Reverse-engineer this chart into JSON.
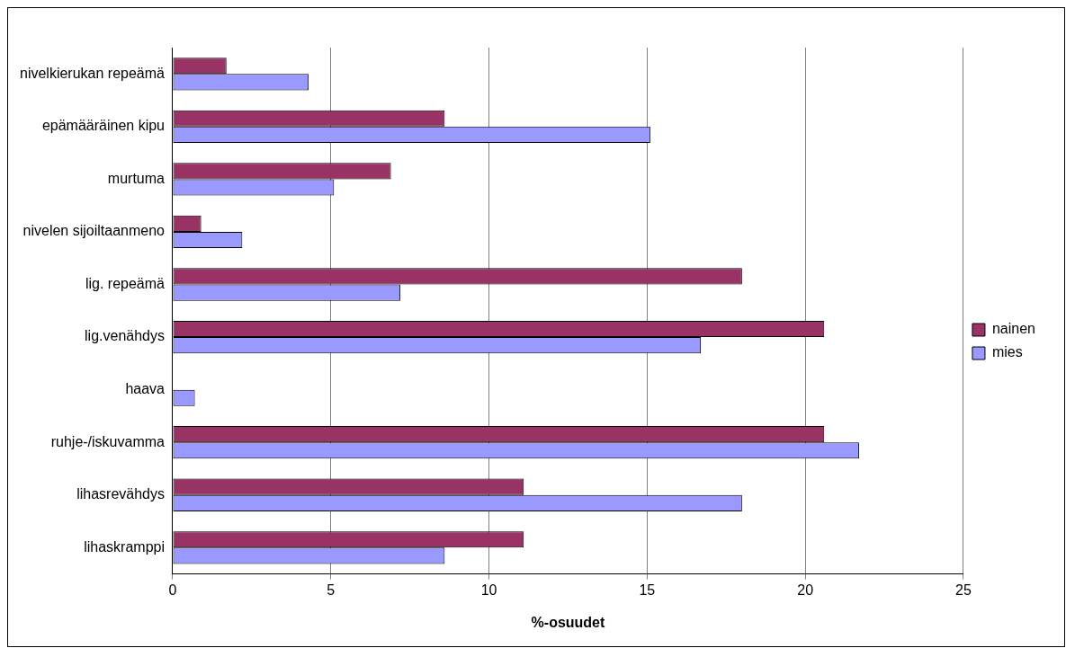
{
  "chart_data": {
    "type": "bar",
    "orientation": "horizontal",
    "xlabel": "%-osuudet",
    "categories": [
      "nivelkierukan repeämä",
      "epämääräinen kipu",
      "murtuma",
      "nivelen sijoiltaanmeno",
      "lig. repeämä",
      "lig.venähdys",
      "haava",
      "ruhje-/iskuvamma",
      "lihasrevähdys",
      "lihaskramppi"
    ],
    "series": [
      {
        "name": "nainen",
        "color": "#993366",
        "values": [
          1.7,
          8.6,
          6.9,
          0.9,
          18.0,
          20.6,
          0,
          20.6,
          11.1,
          11.1
        ]
      },
      {
        "name": "mies",
        "color": "#9999ff",
        "values": [
          4.3,
          15.1,
          5.1,
          2.2,
          7.2,
          16.7,
          0.7,
          21.7,
          18.0,
          8.6
        ]
      }
    ],
    "xlim": [
      0,
      25
    ],
    "xticks": [
      0,
      5,
      10,
      15,
      20,
      25
    ],
    "grid": "x",
    "legend": "right"
  }
}
